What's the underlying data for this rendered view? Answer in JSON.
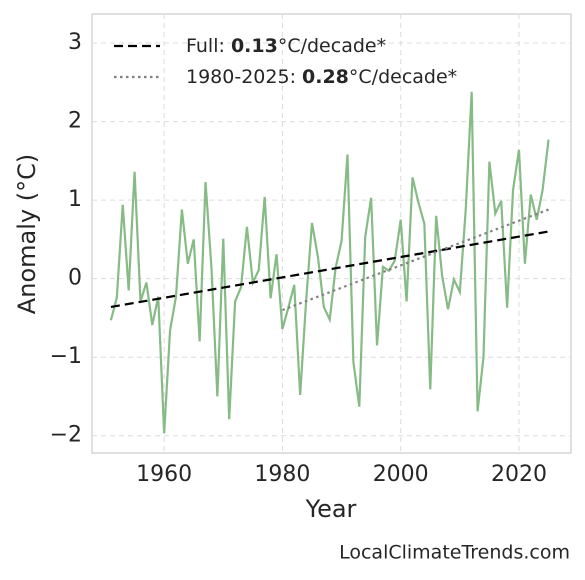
{
  "chart_data": {
    "type": "line",
    "xlabel": "Year",
    "ylabel": "Anomaly (°C)",
    "watermark": "LocalClimateTrends.com",
    "xlim": [
      1947.8,
      2028.8
    ],
    "ylim": [
      -2.22,
      3.37
    ],
    "xticks": [
      1960,
      1980,
      2000,
      2020
    ],
    "yticks": [
      {
        "value": -2,
        "label": "−2"
      },
      {
        "value": -1,
        "label": "−1"
      },
      0,
      1,
      2,
      3
    ],
    "grid": true,
    "legend": "upper left",
    "series": [
      {
        "color": "#86bb86",
        "style": "solid",
        "x": [
          1951,
          1952,
          1953,
          1954,
          1955,
          1956,
          1957,
          1958,
          1959,
          1960,
          1961,
          1962,
          1963,
          1964,
          1965,
          1966,
          1967,
          1968,
          1969,
          1970,
          1971,
          1972,
          1973,
          1974,
          1975,
          1976,
          1977,
          1978,
          1979,
          1980,
          1981,
          1982,
          1983,
          1984,
          1985,
          1986,
          1987,
          1988,
          1989,
          1990,
          1991,
          1992,
          1993,
          1994,
          1995,
          1996,
          1997,
          1998,
          1999,
          2000,
          2001,
          2002,
          2003,
          2004,
          2005,
          2006,
          2007,
          2008,
          2009,
          2010,
          2011,
          2012,
          2013,
          2014,
          2015,
          2016,
          2017,
          2018,
          2019,
          2020,
          2021,
          2022,
          2023,
          2024,
          2025
        ],
        "values": [
          -0.53,
          -0.24,
          0.94,
          -0.15,
          1.36,
          -0.29,
          -0.05,
          -0.59,
          -0.23,
          -1.97,
          -0.66,
          -0.23,
          0.88,
          0.19,
          0.5,
          -0.8,
          1.23,
          0.14,
          -1.5,
          0.51,
          -1.79,
          -0.29,
          -0.11,
          0.66,
          -0.05,
          0.11,
          1.04,
          -0.25,
          0.31,
          -0.64,
          -0.37,
          -0.08,
          -1.48,
          -0.29,
          0.71,
          0.28,
          -0.36,
          -0.52,
          0.14,
          0.48,
          1.58,
          -1.06,
          -1.63,
          0.53,
          1.03,
          -0.85,
          0.15,
          0.1,
          0.23,
          0.75,
          -0.29,
          1.29,
          0.97,
          0.7,
          -1.41,
          0.8,
          0.04,
          -0.39,
          -0.01,
          -0.17,
          0.88,
          2.38,
          -1.69,
          -1.0,
          1.49,
          0.83,
          0.99,
          -0.37,
          1.13,
          1.64,
          0.19,
          1.07,
          0.75,
          1.13,
          1.77
        ]
      },
      {
        "name": {
          "prefix": "Full: ",
          "rate": 0.13,
          "suffix": "°C/decade*"
        },
        "color": "#000000",
        "style": "dashed",
        "x": [
          1951,
          2025
        ],
        "values": [
          -0.36,
          0.6
        ]
      },
      {
        "name": {
          "prefix": "1980-2025: ",
          "rate": 0.28,
          "suffix": "°C/decade*"
        },
        "color": "#808080",
        "style": "dotted",
        "x": [
          1980,
          2025
        ],
        "values": [
          -0.4,
          0.88
        ]
      }
    ]
  }
}
